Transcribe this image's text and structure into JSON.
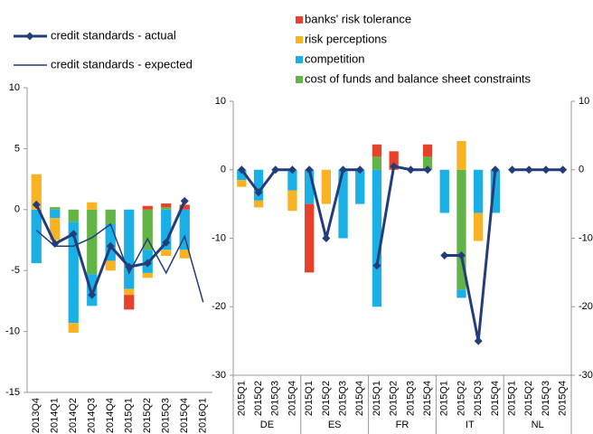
{
  "chart_data": [
    {
      "type": "bar",
      "categories": [
        "2013Q4",
        "2014Q1",
        "2014Q2",
        "2014Q3",
        "2014Q4",
        "2015Q1",
        "2015Q2",
        "2015Q3",
        "2015Q4",
        "2016Q1"
      ],
      "ylim": [
        -15,
        10
      ],
      "yticks": [
        -15,
        -10,
        -5,
        0,
        5,
        10
      ],
      "series": [
        {
          "name": "banks' risk tolerance",
          "type": "bar",
          "color": "#e8412b",
          "values": [
            null,
            null,
            null,
            null,
            null,
            -1.2,
            0.3,
            0.3,
            0.4,
            null
          ]
        },
        {
          "name": "risk perceptions",
          "type": "bar",
          "color": "#f8b323",
          "values": [
            2.9,
            -1.8,
            -0.8,
            0.6,
            -0.8,
            -0.5,
            -0.4,
            -0.5,
            -0.7,
            null
          ]
        },
        {
          "name": "competition",
          "type": "bar",
          "color": "#1ab0e5",
          "values": [
            -4.4,
            -0.7,
            -8.3,
            -2.6,
            -3.0,
            -6.5,
            -1.9,
            -3.3,
            -3.3,
            null
          ]
        },
        {
          "name": "cost of funds and balance sheet constraints",
          "type": "bar",
          "color": "#62b446",
          "values": [
            null,
            0.2,
            -1.0,
            -5.3,
            -1.2,
            null,
            -3.3,
            0.2,
            null,
            null
          ]
        },
        {
          "name": "credit standards - actual",
          "type": "line",
          "color": "#233d7b",
          "values": [
            0.4,
            -2.8,
            -2.0,
            -7.0,
            -3.0,
            -4.7,
            -4.4,
            -2.7,
            0.7,
            null
          ]
        },
        {
          "name": "credit standards - expected",
          "type": "line",
          "color": "#233d7b",
          "values": [
            -1.7,
            -3.0,
            -3.0,
            -2.3,
            -1.2,
            -5.2,
            -2.4,
            -5.2,
            -2.2,
            -7.6
          ]
        }
      ]
    },
    {
      "type": "bar",
      "categories": [
        "2015Q1",
        "2015Q2",
        "2015Q3",
        "2015Q4",
        "2015Q1",
        "2015Q2",
        "2015Q3",
        "2015Q4",
        "2015Q1",
        "2015Q2",
        "2015Q3",
        "2015Q4",
        "2015Q1",
        "2015Q2",
        "2015Q3",
        "2015Q4",
        "2015Q1",
        "2015Q2",
        "2015Q3",
        "2015Q4"
      ],
      "groups": [
        "DE",
        "ES",
        "FR",
        "IT",
        "NL"
      ],
      "ylim": [
        -30,
        10
      ],
      "yticks": [
        -30,
        -20,
        -10,
        0,
        10
      ],
      "series": [
        {
          "type": "bar",
          "color": "#e8412b",
          "values": [
            null,
            null,
            null,
            null,
            -10,
            null,
            null,
            null,
            1.8,
            2.7,
            null,
            1.8,
            null,
            null,
            null,
            null,
            null,
            null,
            null,
            null
          ]
        },
        {
          "type": "bar",
          "color": "#f8b323",
          "values": [
            -1,
            -1,
            null,
            -3,
            null,
            -5,
            null,
            null,
            null,
            null,
            null,
            null,
            null,
            4.2,
            -4.1,
            null,
            null,
            null,
            null,
            null
          ]
        },
        {
          "type": "bar",
          "color": "#1ab0e5",
          "values": [
            -1.5,
            -4.5,
            null,
            -3,
            -5,
            null,
            -10,
            -5,
            -20,
            null,
            null,
            null,
            -6.3,
            -1.2,
            -6.3,
            -6.3,
            null,
            null,
            null,
            null
          ]
        },
        {
          "type": "bar",
          "color": "#62b446",
          "values": [
            null,
            null,
            null,
            null,
            null,
            null,
            null,
            null,
            1.9,
            null,
            null,
            1.9,
            null,
            -17.5,
            null,
            null,
            null,
            null,
            null,
            null
          ]
        },
        {
          "type": "line",
          "color": "#233d7b",
          "values": [
            0,
            -3.3,
            0,
            0,
            0,
            -10,
            0,
            0,
            -14,
            0.5,
            0,
            0,
            -12.5,
            -12.5,
            -25,
            0,
            0,
            0,
            0,
            0
          ]
        }
      ]
    }
  ]
}
